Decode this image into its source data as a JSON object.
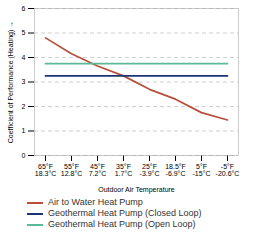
{
  "chart_data": {
    "type": "line",
    "xlabel": "Outdoor Air Temperature",
    "ylabel": "Coefficient of Performance (Heating)",
    "categories": [
      "65°F\n18.3°C",
      "55°F\n12.8°C",
      "45°F\n7.2°C",
      "35°F\n1.7°C",
      "25°F\n-3.9°C",
      "18.5°F\n-6.9°C",
      "5°F\n-15°C",
      "-5°F\n-20.6°C"
    ],
    "series": [
      {
        "name": "Air to Water Heat Pump",
        "color": "#b5503c",
        "values": [
          4.8,
          4.15,
          3.65,
          3.25,
          2.7,
          2.3,
          1.75,
          1.45
        ]
      },
      {
        "name": "Geothermal Heat Pump (Closed Loop)",
        "color": "#1b3475",
        "values": [
          3.25,
          3.25,
          3.25,
          3.25,
          3.25,
          3.25,
          3.25,
          3.25
        ]
      },
      {
        "name": "Geothermal Heat Pump (Open Loop)",
        "color": "#5bb89a",
        "values": [
          3.75,
          3.75,
          3.75,
          3.75,
          3.75,
          3.75,
          3.75,
          3.75
        ]
      }
    ],
    "ylim": [
      0,
      6
    ],
    "yticks": [
      0,
      1,
      2,
      3,
      4,
      5,
      6
    ],
    "grid": true,
    "legend": "bottom"
  }
}
